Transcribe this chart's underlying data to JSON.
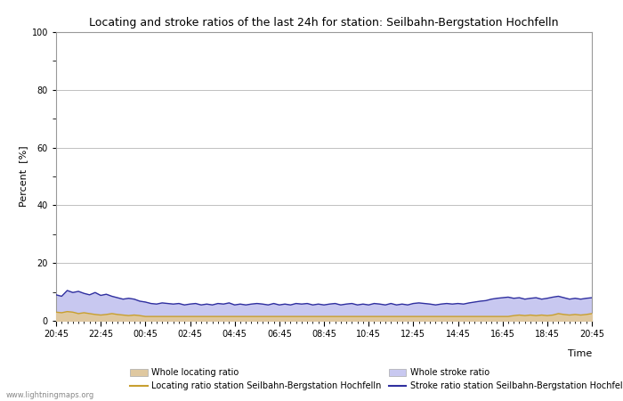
{
  "title": "Locating and stroke ratios of the last 24h for station: Seilbahn-Bergstation Hochfelln",
  "xlabel": "Time",
  "ylabel": "Percent  [%]",
  "xlim": [
    0,
    96
  ],
  "ylim": [
    0,
    100
  ],
  "yticks": [
    0,
    20,
    40,
    60,
    80,
    100
  ],
  "xtick_labels": [
    "20:45",
    "22:45",
    "00:45",
    "02:45",
    "04:45",
    "06:45",
    "08:45",
    "10:45",
    "12:45",
    "14:45",
    "16:45",
    "18:45",
    "20:45"
  ],
  "xtick_positions": [
    0,
    8,
    16,
    24,
    32,
    40,
    48,
    56,
    64,
    72,
    80,
    88,
    96
  ],
  "background_color": "#ffffff",
  "plot_bg_color": "#ffffff",
  "grid_color": "#c0c0c0",
  "whole_locating_fill_color": "#dfc8a0",
  "whole_stroke_fill_color": "#c8c8f0",
  "station_locating_line_color": "#c8a030",
  "station_stroke_line_color": "#3030a0",
  "watermark": "www.lightningmaps.org",
  "legend_labels": [
    "Whole locating ratio",
    "Locating ratio station Seilbahn-Bergstation Hochfelln",
    "Whole stroke ratio",
    "Stroke ratio station Seilbahn-Bergstation Hochfelln"
  ],
  "whole_stroke_data": [
    9.0,
    8.5,
    10.5,
    9.8,
    10.2,
    9.5,
    9.0,
    9.8,
    8.8,
    9.2,
    8.5,
    8.0,
    7.5,
    7.8,
    7.5,
    6.8,
    6.5,
    6.0,
    5.8,
    6.2,
    6.0,
    5.8,
    6.0,
    5.5,
    5.8,
    6.0,
    5.5,
    5.8,
    5.5,
    6.0,
    5.8,
    6.2,
    5.5,
    5.8,
    5.5,
    5.8,
    6.0,
    5.8,
    5.5,
    6.0,
    5.5,
    5.8,
    5.5,
    6.0,
    5.8,
    6.0,
    5.5,
    5.8,
    5.5,
    5.8,
    6.0,
    5.5,
    5.8,
    6.0,
    5.5,
    5.8,
    5.5,
    6.0,
    5.8,
    5.5,
    6.0,
    5.5,
    5.8,
    5.5,
    6.0,
    6.2,
    6.0,
    5.8,
    5.5,
    5.8,
    6.0,
    5.8,
    6.0,
    5.8,
    6.2,
    6.5,
    6.8,
    7.0,
    7.5,
    7.8,
    8.0,
    8.2,
    7.8,
    8.0,
    7.5,
    7.8,
    8.0,
    7.5,
    7.8,
    8.2,
    8.5,
    8.0,
    7.5,
    7.8,
    7.5,
    7.8,
    8.0
  ],
  "whole_locating_data": [
    3.0,
    2.8,
    3.2,
    3.0,
    2.5,
    2.8,
    2.5,
    2.2,
    2.0,
    2.2,
    2.5,
    2.2,
    2.0,
    1.8,
    2.0,
    1.8,
    1.5,
    1.5,
    1.5,
    1.5,
    1.5,
    1.5,
    1.5,
    1.5,
    1.5,
    1.5,
    1.5,
    1.5,
    1.5,
    1.5,
    1.5,
    1.5,
    1.5,
    1.5,
    1.5,
    1.5,
    1.5,
    1.5,
    1.5,
    1.5,
    1.5,
    1.5,
    1.5,
    1.5,
    1.5,
    1.5,
    1.5,
    1.5,
    1.5,
    1.5,
    1.5,
    1.5,
    1.5,
    1.5,
    1.5,
    1.5,
    1.5,
    1.5,
    1.5,
    1.5,
    1.5,
    1.5,
    1.5,
    1.5,
    1.5,
    1.5,
    1.5,
    1.5,
    1.5,
    1.5,
    1.5,
    1.5,
    1.5,
    1.5,
    1.5,
    1.5,
    1.5,
    1.5,
    1.5,
    1.5,
    1.5,
    1.5,
    1.8,
    2.0,
    1.8,
    2.0,
    1.8,
    2.0,
    1.8,
    2.0,
    2.5,
    2.2,
    2.0,
    2.2,
    2.0,
    2.2,
    2.5
  ],
  "station_locating_data": [
    3.0,
    2.8,
    3.2,
    3.0,
    2.5,
    2.8,
    2.5,
    2.2,
    2.0,
    2.2,
    2.5,
    2.2,
    2.0,
    1.8,
    2.0,
    1.8,
    1.5,
    1.5,
    1.5,
    1.5,
    1.5,
    1.5,
    1.5,
    1.5,
    1.5,
    1.5,
    1.5,
    1.5,
    1.5,
    1.5,
    1.5,
    1.5,
    1.5,
    1.5,
    1.5,
    1.5,
    1.5,
    1.5,
    1.5,
    1.5,
    1.5,
    1.5,
    1.5,
    1.5,
    1.5,
    1.5,
    1.5,
    1.5,
    1.5,
    1.5,
    1.5,
    1.5,
    1.5,
    1.5,
    1.5,
    1.5,
    1.5,
    1.5,
    1.5,
    1.5,
    1.5,
    1.5,
    1.5,
    1.5,
    1.5,
    1.5,
    1.5,
    1.5,
    1.5,
    1.5,
    1.5,
    1.5,
    1.5,
    1.5,
    1.5,
    1.5,
    1.5,
    1.5,
    1.5,
    1.5,
    1.5,
    1.5,
    1.8,
    2.0,
    1.8,
    2.0,
    1.8,
    2.0,
    1.8,
    2.0,
    2.5,
    2.2,
    2.0,
    2.2,
    2.0,
    2.2,
    2.5
  ],
  "station_stroke_data": [
    9.0,
    8.5,
    10.5,
    9.8,
    10.2,
    9.5,
    9.0,
    9.8,
    8.8,
    9.2,
    8.5,
    8.0,
    7.5,
    7.8,
    7.5,
    6.8,
    6.5,
    6.0,
    5.8,
    6.2,
    6.0,
    5.8,
    6.0,
    5.5,
    5.8,
    6.0,
    5.5,
    5.8,
    5.5,
    6.0,
    5.8,
    6.2,
    5.5,
    5.8,
    5.5,
    5.8,
    6.0,
    5.8,
    5.5,
    6.0,
    5.5,
    5.8,
    5.5,
    6.0,
    5.8,
    6.0,
    5.5,
    5.8,
    5.5,
    5.8,
    6.0,
    5.5,
    5.8,
    6.0,
    5.5,
    5.8,
    5.5,
    6.0,
    5.8,
    5.5,
    6.0,
    5.5,
    5.8,
    5.5,
    6.0,
    6.2,
    6.0,
    5.8,
    5.5,
    5.8,
    6.0,
    5.8,
    6.0,
    5.8,
    6.2,
    6.5,
    6.8,
    7.0,
    7.5,
    7.8,
    8.0,
    8.2,
    7.8,
    8.0,
    7.5,
    7.8,
    8.0,
    7.5,
    7.8,
    8.2,
    8.5,
    8.0,
    7.5,
    7.8,
    7.5,
    7.8,
    8.0
  ]
}
